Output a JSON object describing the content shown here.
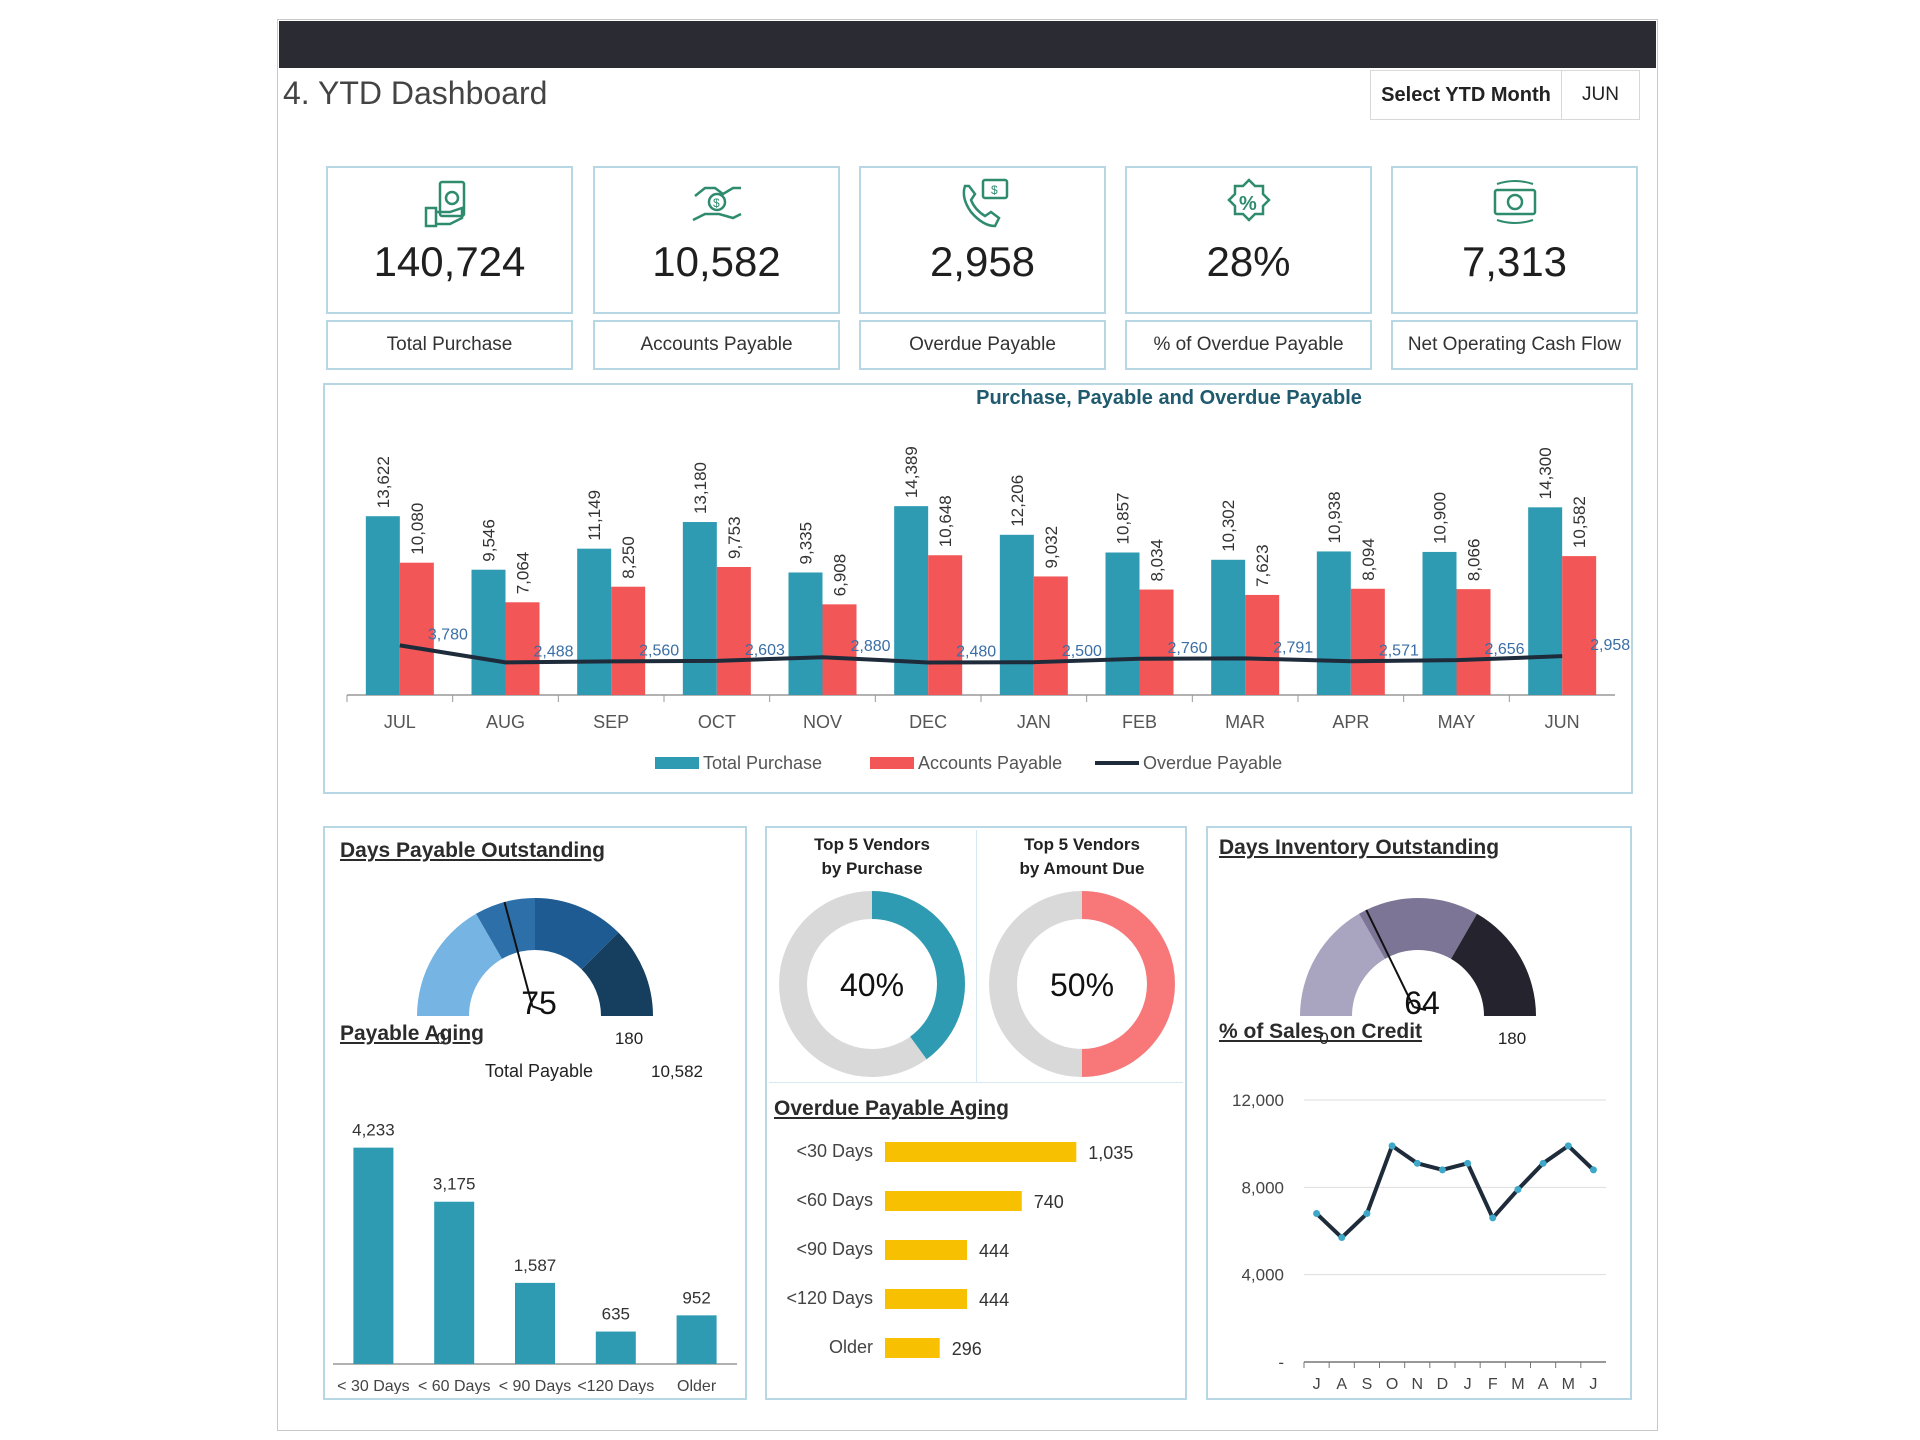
{
  "header": {
    "title": "4. YTD Dashboard",
    "select_label": "Select YTD Month",
    "select_value": "JUN"
  },
  "colors": {
    "teal": "#2f9bb3",
    "red": "#f25656",
    "dark": "#1e2b3a",
    "yellow": "#f7c000",
    "grey": "#d9d9d9",
    "pink": "#f8787a"
  },
  "kpis": [
    {
      "icon": "money-hand-icon",
      "value": "140,724",
      "label": "Total Purchase"
    },
    {
      "icon": "handshake-dollar-icon",
      "value": "10,582",
      "label": "Accounts Payable"
    },
    {
      "icon": "phone-dollar-icon",
      "value": "2,958",
      "label": "Overdue Payable"
    },
    {
      "icon": "percent-badge-icon",
      "value": "28%",
      "label": "% of Overdue Payable"
    },
    {
      "icon": "cash-cycle-icon",
      "value": "7,313",
      "label": "Net Operating Cash Flow"
    }
  ],
  "chart_data": [
    {
      "type": "bar",
      "title": "Purchase, Payable and Overdue Payable",
      "categories": [
        "JUL",
        "AUG",
        "SEP",
        "OCT",
        "NOV",
        "DEC",
        "JAN",
        "FEB",
        "MAR",
        "APR",
        "MAY",
        "JUN"
      ],
      "series": [
        {
          "name": "Total Purchase",
          "type": "bar",
          "values": [
            13622,
            9546,
            11149,
            13180,
            9335,
            14389,
            12206,
            10857,
            10302,
            10938,
            10900,
            14300
          ],
          "labels": [
            "13,622",
            "9,546",
            "11,149",
            "13,180",
            "9,335",
            "14,389",
            "12,206",
            "10,857",
            "10,302",
            "10,938",
            "10,900",
            "14,300"
          ]
        },
        {
          "name": "Accounts Payable",
          "type": "bar",
          "values": [
            10080,
            7064,
            8250,
            9753,
            6908,
            10648,
            9032,
            8034,
            7623,
            8094,
            8066,
            10582
          ],
          "labels": [
            "10,080",
            "7,064",
            "8,250",
            "9,753",
            "6,908",
            "10,648",
            "9,032",
            "8,034",
            "7,623",
            "8,094",
            "8,066",
            "10,582"
          ]
        },
        {
          "name": "Overdue Payable",
          "type": "line",
          "values": [
            3780,
            2488,
            2560,
            2603,
            2880,
            2480,
            2500,
            2760,
            2791,
            2571,
            2656,
            2958
          ],
          "labels": [
            "3,780",
            "2,488",
            "2,560",
            "2,603",
            "2,880",
            "2,480",
            "2,500",
            "2,760",
            "2,791",
            "2,571",
            "2,656",
            "2,958"
          ]
        }
      ],
      "ylim": [
        0,
        16000
      ],
      "legend": "bottom"
    },
    {
      "type": "gauge",
      "title": "Days Payable Outstanding",
      "value": 75,
      "value_label": "75",
      "min": 0,
      "max": 180,
      "min_label": "0",
      "max_label": "180",
      "bands": [
        60,
        30,
        45,
        45
      ]
    },
    {
      "type": "bar",
      "title": "Payable Aging",
      "total_label": "Total Payable",
      "total_value": "10,582",
      "categories": [
        "< 30 Days",
        "< 60 Days",
        "< 90 Days",
        "<120 Days",
        "Older"
      ],
      "values": [
        4233,
        3175,
        1587,
        635,
        952
      ],
      "labels": [
        "4,233",
        "3,175",
        "1,587",
        "635",
        "952"
      ],
      "ylim": [
        0,
        4500
      ]
    },
    {
      "type": "pie",
      "title": "Top 5 Vendors\nby Purchase",
      "title_lines": [
        "Top 5 Vendors",
        "by Purchase"
      ],
      "value": 40,
      "value_label": "40%"
    },
    {
      "type": "pie",
      "title": "Top 5 Vendors\nby Amount Due",
      "title_lines": [
        "Top 5 Vendors",
        "by Amount Due"
      ],
      "value": 50,
      "value_label": "50%"
    },
    {
      "type": "bar",
      "orientation": "horizontal",
      "title": "Overdue Payable Aging",
      "categories": [
        "<30 Days",
        "<60 Days",
        "<90 Days",
        "<120 Days",
        "Older"
      ],
      "values": [
        1035,
        740,
        444,
        444,
        296
      ],
      "labels": [
        "1,035",
        "740",
        "444",
        "444",
        "296"
      ],
      "xlim": [
        0,
        1100
      ]
    },
    {
      "type": "gauge",
      "title": "Days Inventory Outstanding",
      "value": 64,
      "value_label": "64",
      "min": 0,
      "max": 180,
      "min_label": "0",
      "max_label": "180",
      "bands": [
        60,
        60,
        60
      ]
    },
    {
      "type": "line",
      "title": "% of Sales on Credit",
      "categories": [
        "J",
        "A",
        "S",
        "O",
        "N",
        "D",
        "J",
        "F",
        "M",
        "A",
        "M",
        "J"
      ],
      "values": [
        6800,
        5700,
        6800,
        9900,
        9100,
        8800,
        9100,
        6600,
        7900,
        9100,
        9900,
        8800
      ],
      "ylim": [
        0,
        12000
      ],
      "yticks": [
        0,
        4000,
        8000,
        12000
      ],
      "ytick_labels": [
        "-",
        "4,000",
        "8,000",
        "12,000"
      ]
    }
  ]
}
